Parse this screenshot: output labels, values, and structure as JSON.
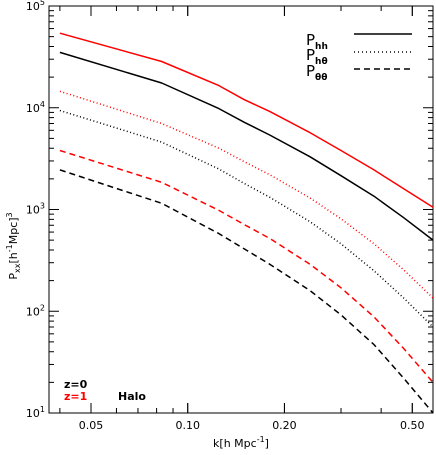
{
  "chart_data": {
    "type": "line",
    "xlabel": "k[h Mpc",
    "xlabel_sup": "-1",
    "xlabel_end": "]",
    "ylabel": "P",
    "ylabel_sub": "xx",
    "ylabel_mid": "[h",
    "ylabel_sup": "-1",
    "ylabel_end": "Mpc]",
    "ylabel_sup2": "3",
    "x_scale": "log",
    "y_scale": "log",
    "xlim": [
      0.037,
      0.58
    ],
    "ylim": [
      10,
      100000
    ],
    "x_ticks": [
      {
        "value": 0.05,
        "label": "0.05"
      },
      {
        "value": 0.1,
        "label": "0.10"
      },
      {
        "value": 0.2,
        "label": "0.20"
      },
      {
        "value": 0.5,
        "label": "0.50"
      }
    ],
    "y_ticks": [
      {
        "value": 10,
        "base": "10",
        "exp": "1"
      },
      {
        "value": 100,
        "base": "10",
        "exp": "2"
      },
      {
        "value": 1000,
        "base": "10",
        "exp": "3"
      },
      {
        "value": 10000,
        "base": "10",
        "exp": "4"
      },
      {
        "value": 100000,
        "base": "10",
        "exp": "5"
      }
    ],
    "x": [
      0.04,
      0.083,
      0.125,
      0.15,
      0.18,
      0.24,
      0.3,
      0.38,
      0.47,
      0.58
    ],
    "series": [
      {
        "name": "P_hh",
        "redshift": "z=1",
        "color": "#ff0000",
        "dash": "solid",
        "values": [
          54000,
          28500,
          16500,
          12000,
          9200,
          5700,
          3800,
          2450,
          1600,
          1050
        ]
      },
      {
        "name": "P_hh",
        "redshift": "z=0",
        "color": "#000000",
        "dash": "solid",
        "values": [
          35000,
          17500,
          9800,
          7200,
          5400,
          3300,
          2150,
          1350,
          830,
          500
        ]
      },
      {
        "name": "P_hθ",
        "redshift": "z=1",
        "color": "#ff0000",
        "dash": "dotted",
        "values": [
          14500,
          7000,
          4000,
          2950,
          2200,
          1300,
          810,
          460,
          255,
          135
        ]
      },
      {
        "name": "P_hθ",
        "redshift": "z=0",
        "color": "#000000",
        "dash": "dotted",
        "values": [
          9400,
          4600,
          2500,
          1800,
          1320,
          760,
          460,
          250,
          135,
          70
        ]
      },
      {
        "name": "P_θθ",
        "redshift": "z=1",
        "color": "#ff0000",
        "dash": "dashed",
        "values": [
          3800,
          1850,
          980,
          710,
          520,
          290,
          170,
          88,
          43,
          20
        ]
      },
      {
        "name": "P_θθ",
        "redshift": "z=0",
        "color": "#000000",
        "dash": "dashed",
        "values": [
          2450,
          1150,
          580,
          410,
          290,
          160,
          92,
          47,
          22,
          10
        ]
      }
    ],
    "legend": {
      "placement": "top-right",
      "entries": [
        {
          "base": "P",
          "sub": "hh",
          "dash": "solid"
        },
        {
          "base": "P",
          "sub": "hθ",
          "dash": "dotted"
        },
        {
          "base": "P",
          "sub": "θθ",
          "dash": "dashed"
        }
      ]
    },
    "annotations": {
      "z0": {
        "text": "z=0",
        "color": "#000000"
      },
      "z1": {
        "text": "z=1",
        "color": "#ff0000"
      },
      "halo": {
        "text": "Halo",
        "color": "#000000"
      }
    }
  }
}
